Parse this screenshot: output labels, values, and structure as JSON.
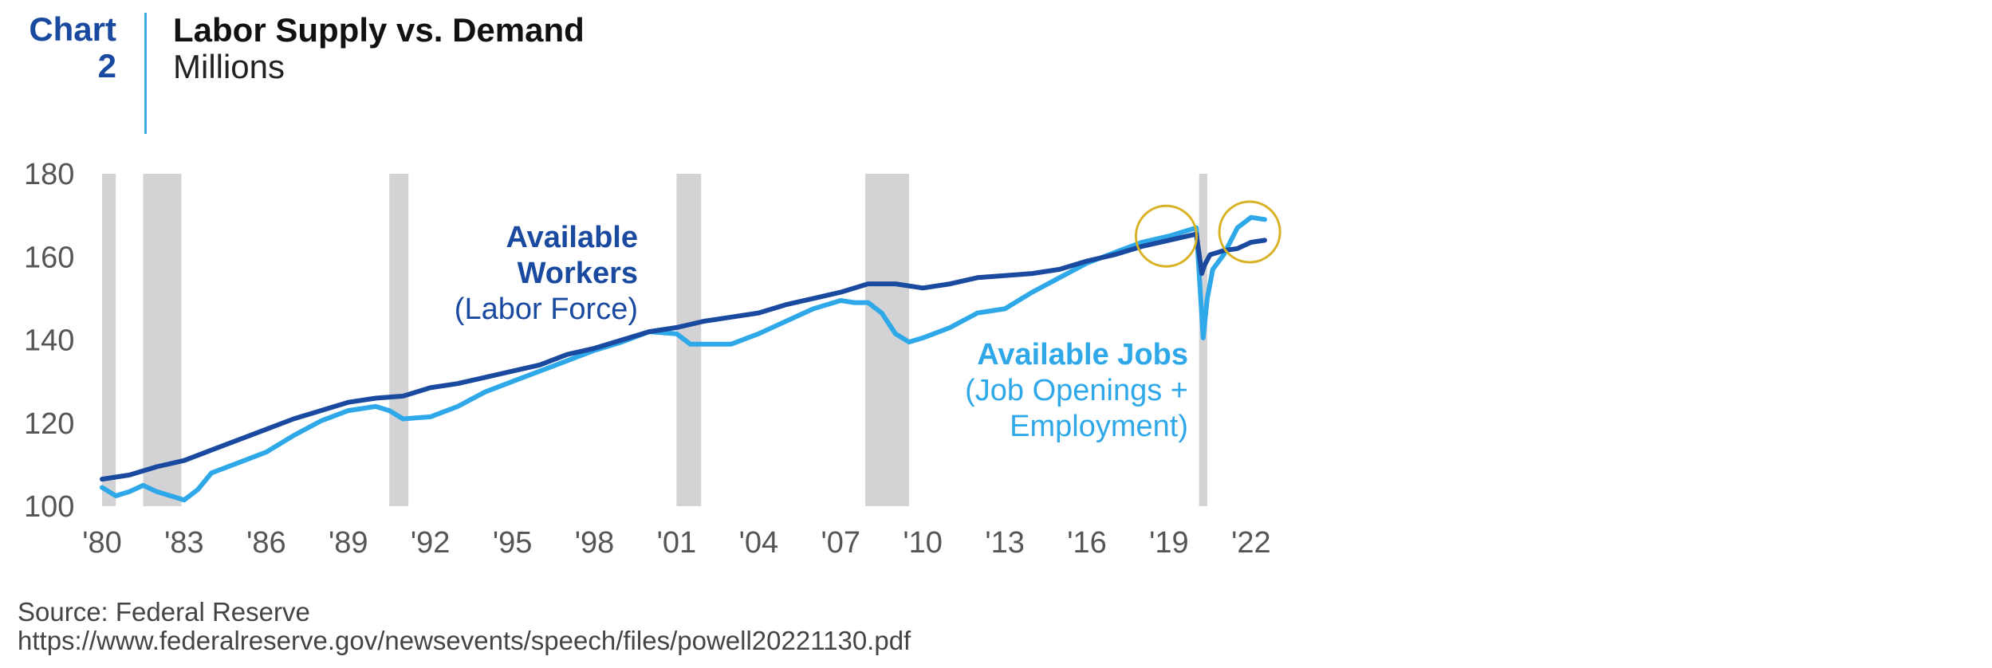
{
  "header": {
    "chart_label": "Chart",
    "chart_number": "2",
    "title": "Labor Supply vs. Demand",
    "subtitle": "Millions"
  },
  "source": {
    "line1": "Source: Federal Reserve",
    "line2": "https://www.federalreserve.gov/newsevents/speech/files/powell20221130.pdf"
  },
  "colors": {
    "workers": "#1a4aa0",
    "jobs": "#2ea8e8",
    "recession": "#d3d3d5",
    "highlight": "#d8b224",
    "axis_text": "#555555"
  },
  "chart_data": {
    "type": "line",
    "title": "Labor Supply vs. Demand",
    "ylabel": "Millions",
    "xlabel": "",
    "xlim": [
      1980,
      2023.2
    ],
    "ylim": [
      100,
      180
    ],
    "yticks": [
      100,
      120,
      140,
      160,
      180
    ],
    "ytick_labels": [
      "100",
      "120",
      "140",
      "160",
      "180"
    ],
    "xticks": [
      1980,
      1983,
      1986,
      1989,
      1992,
      1995,
      1998,
      2001,
      2004,
      2007,
      2010,
      2013,
      2016,
      2019,
      2022
    ],
    "xtick_labels": [
      "'80",
      "'83",
      "'86",
      "'89",
      "'92",
      "'95",
      "'98",
      "'01",
      "'04",
      "'07",
      "'10",
      "'13",
      "'16",
      "'19",
      "'22"
    ],
    "grid": false,
    "recessions": [
      [
        1980.0,
        1980.5
      ],
      [
        1981.5,
        1982.9
      ],
      [
        1990.5,
        1991.2
      ],
      [
        2001.0,
        2001.9
      ],
      [
        2007.9,
        2009.5
      ],
      [
        2020.1,
        2020.4
      ]
    ],
    "highlight_circles": [
      {
        "x": 2018.9,
        "y": 165
      },
      {
        "x": 2021.95,
        "y": 166
      }
    ],
    "annotations": [
      {
        "series": "workers",
        "lines": [
          "Available",
          "Workers",
          "(Labor Force)"
        ]
      },
      {
        "series": "jobs",
        "lines": [
          "Available Jobs",
          "(Job Openings +",
          "Employment)"
        ]
      }
    ],
    "series": [
      {
        "key": "workers",
        "name": "Available Workers (Labor Force)",
        "x": [
          1980.0,
          1981.0,
          1982.0,
          1983.0,
          1984.0,
          1985.0,
          1986.0,
          1987.0,
          1988.0,
          1989.0,
          1990.0,
          1991.0,
          1992.0,
          1993.0,
          1994.0,
          1995.0,
          1996.0,
          1997.0,
          1998.0,
          1999.0,
          2000.0,
          2001.0,
          2002.0,
          2003.0,
          2004.0,
          2005.0,
          2006.0,
          2007.0,
          2008.0,
          2009.0,
          2010.0,
          2011.0,
          2012.0,
          2013.0,
          2014.0,
          2015.0,
          2016.0,
          2017.0,
          2018.0,
          2019.0,
          2020.0,
          2020.2,
          2020.3,
          2020.5,
          2021.0,
          2021.5,
          2022.0,
          2022.5
        ],
        "y": [
          106.5,
          107.5,
          109.5,
          111.0,
          113.5,
          116.0,
          118.5,
          121.0,
          123.0,
          125.0,
          126.0,
          126.5,
          128.5,
          129.5,
          131.0,
          132.5,
          134.0,
          136.5,
          138.0,
          140.0,
          142.0,
          143.0,
          144.5,
          145.5,
          146.5,
          148.5,
          150.0,
          151.5,
          153.5,
          153.5,
          152.5,
          153.5,
          155.0,
          155.5,
          156.0,
          157.0,
          159.0,
          160.5,
          162.5,
          164.0,
          165.5,
          156.0,
          158.0,
          160.5,
          161.5,
          162.0,
          163.5,
          164.0
        ]
      },
      {
        "key": "jobs",
        "name": "Available Jobs (Job Openings + Employment)",
        "x": [
          1980.0,
          1980.5,
          1981.0,
          1981.5,
          1982.0,
          1982.5,
          1983.0,
          1983.5,
          1984.0,
          1985.0,
          1986.0,
          1987.0,
          1988.0,
          1989.0,
          1990.0,
          1990.5,
          1991.0,
          1992.0,
          1993.0,
          1994.0,
          1995.0,
          1996.0,
          1997.0,
          1998.0,
          1999.0,
          2000.0,
          2001.0,
          2001.5,
          2002.0,
          2003.0,
          2004.0,
          2005.0,
          2006.0,
          2007.0,
          2007.5,
          2008.0,
          2008.5,
          2009.0,
          2009.5,
          2010.0,
          2011.0,
          2012.0,
          2013.0,
          2014.0,
          2015.0,
          2016.0,
          2017.0,
          2018.0,
          2019.0,
          2020.0,
          2020.25,
          2020.4,
          2020.6,
          2021.0,
          2021.5,
          2022.0,
          2022.5
        ],
        "y": [
          104.5,
          102.5,
          103.5,
          105.0,
          103.5,
          102.5,
          101.5,
          104.0,
          108.0,
          110.5,
          113.0,
          117.0,
          120.5,
          123.0,
          124.0,
          123.0,
          121.0,
          121.5,
          124.0,
          127.5,
          130.0,
          132.5,
          135.0,
          137.5,
          139.5,
          142.0,
          141.5,
          139.0,
          139.0,
          139.0,
          141.5,
          144.5,
          147.5,
          149.5,
          149.0,
          149.0,
          146.5,
          141.5,
          139.5,
          140.5,
          143.0,
          146.5,
          147.5,
          151.5,
          155.0,
          158.5,
          161.0,
          163.5,
          165.0,
          167.0,
          140.5,
          150.0,
          157.0,
          160.5,
          167.0,
          169.5,
          169.0
        ]
      }
    ]
  }
}
